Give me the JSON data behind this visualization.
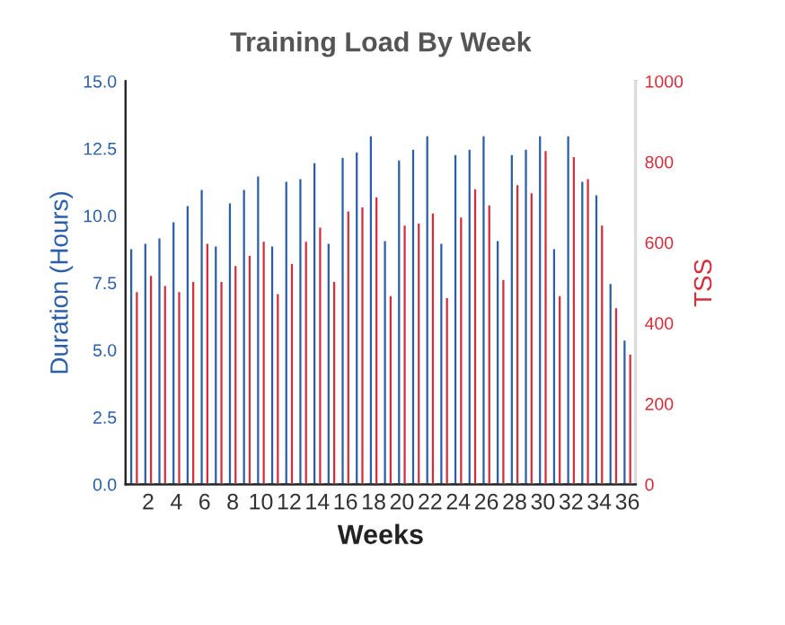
{
  "chart_data": {
    "type": "bar",
    "title": "Training Load By Week",
    "xlabel": "Weeks",
    "ylabel": "Duration (Hours)",
    "y2label": "TSS",
    "categories": [
      null,
      "2",
      null,
      "4",
      null,
      "6",
      null,
      "8",
      null,
      "10",
      null,
      "12",
      null,
      "14",
      null,
      "16",
      null,
      "18",
      null,
      "20",
      null,
      "22",
      null,
      "24",
      null,
      "26",
      null,
      "28",
      null,
      "30",
      null,
      "32",
      null,
      "34",
      null,
      "36"
    ],
    "series": [
      {
        "name": null,
        "color": "#2a5ea8",
        "values": [
          8.8,
          9.0,
          9.2,
          9.8,
          10.4,
          11.0,
          8.9,
          10.5,
          11.0,
          11.5,
          8.9,
          11.3,
          11.4,
          12.0,
          9.0,
          12.2,
          12.4,
          13.0,
          9.1,
          12.1,
          12.5,
          13.0,
          9.0,
          12.3,
          12.5,
          13.0,
          9.1,
          12.3,
          12.5,
          13.0,
          8.8,
          13.0,
          11.3,
          10.8,
          7.5,
          5.4
        ]
      },
      {
        "name": null,
        "color": "#d62d3a",
        "axis": "y2",
        "values": [
          480,
          520,
          495,
          480,
          505,
          600,
          505,
          545,
          570,
          605,
          475,
          550,
          605,
          640,
          505,
          680,
          690,
          715,
          470,
          645,
          650,
          675,
          465,
          665,
          735,
          695,
          510,
          745,
          725,
          830,
          470,
          815,
          760,
          645,
          440,
          325
        ]
      }
    ],
    "ylim": [
      0,
      15
    ],
    "yticks": [
      {
        "value": 0,
        "label": "0.0"
      },
      {
        "value": 2.5,
        "label": "2.5"
      },
      {
        "value": 5,
        "label": "5.0"
      },
      {
        "value": 7.5,
        "label": "7.5"
      },
      {
        "value": 10,
        "label": "10.0"
      },
      {
        "value": 12.5,
        "label": "12.5"
      },
      {
        "value": 15,
        "label": "15.0"
      }
    ],
    "y2lim": [
      0,
      1000
    ],
    "y2ticks": [
      0,
      200,
      400,
      600,
      800,
      1000
    ],
    "grid": false,
    "legend": false
  }
}
